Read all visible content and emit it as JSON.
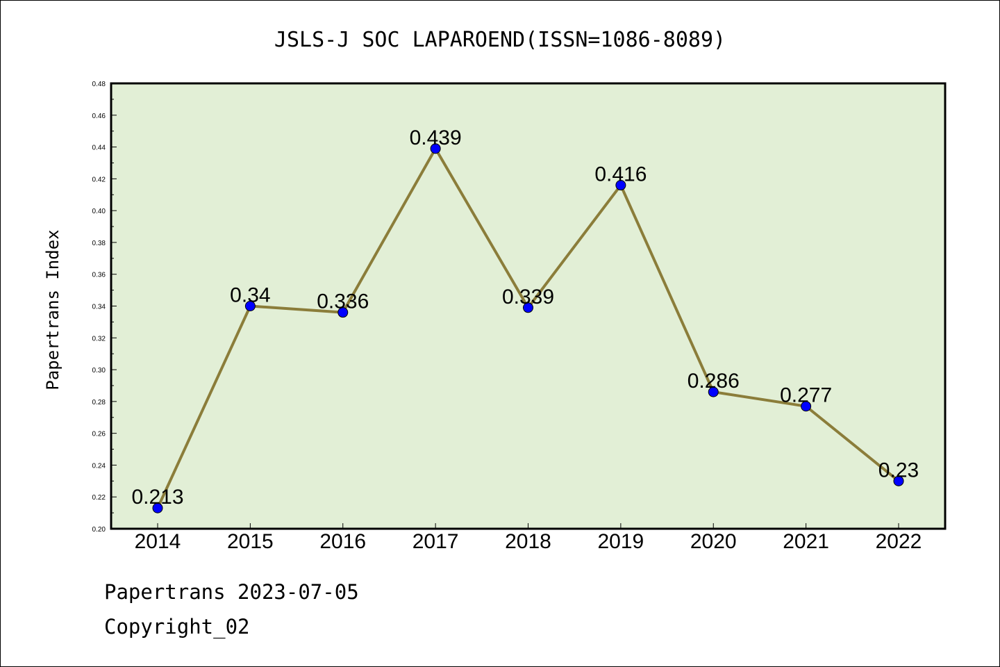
{
  "chart_data": {
    "type": "line",
    "title": "JSLS-J SOC LAPAROEND(ISSN=1086-8089)",
    "xlabel": "",
    "ylabel": "Papertrans Index",
    "categories": [
      "2014",
      "2015",
      "2016",
      "2017",
      "2018",
      "2019",
      "2020",
      "2021",
      "2022"
    ],
    "values": [
      0.213,
      0.34,
      0.336,
      0.439,
      0.339,
      0.416,
      0.286,
      0.277,
      0.23
    ],
    "data_labels": [
      "0.213",
      "0.34",
      "0.336",
      "0.439",
      "0.339",
      "0.416",
      "0.286",
      "0.277",
      "0.23"
    ],
    "ylim": [
      0.2,
      0.48
    ],
    "yticks": [
      "0.20",
      "0.22",
      "0.24",
      "0.26",
      "0.28",
      "0.30",
      "0.32",
      "0.34",
      "0.36",
      "0.38",
      "0.40",
      "0.42",
      "0.44",
      "0.46",
      "0.48"
    ],
    "grid": false,
    "colors": {
      "plot_background": "#e2efd6",
      "line": "#8b7d3a",
      "marker": "#0000ff"
    }
  },
  "footer": {
    "line1": "Papertrans 2023-07-05",
    "line2": "Copyright_02"
  }
}
